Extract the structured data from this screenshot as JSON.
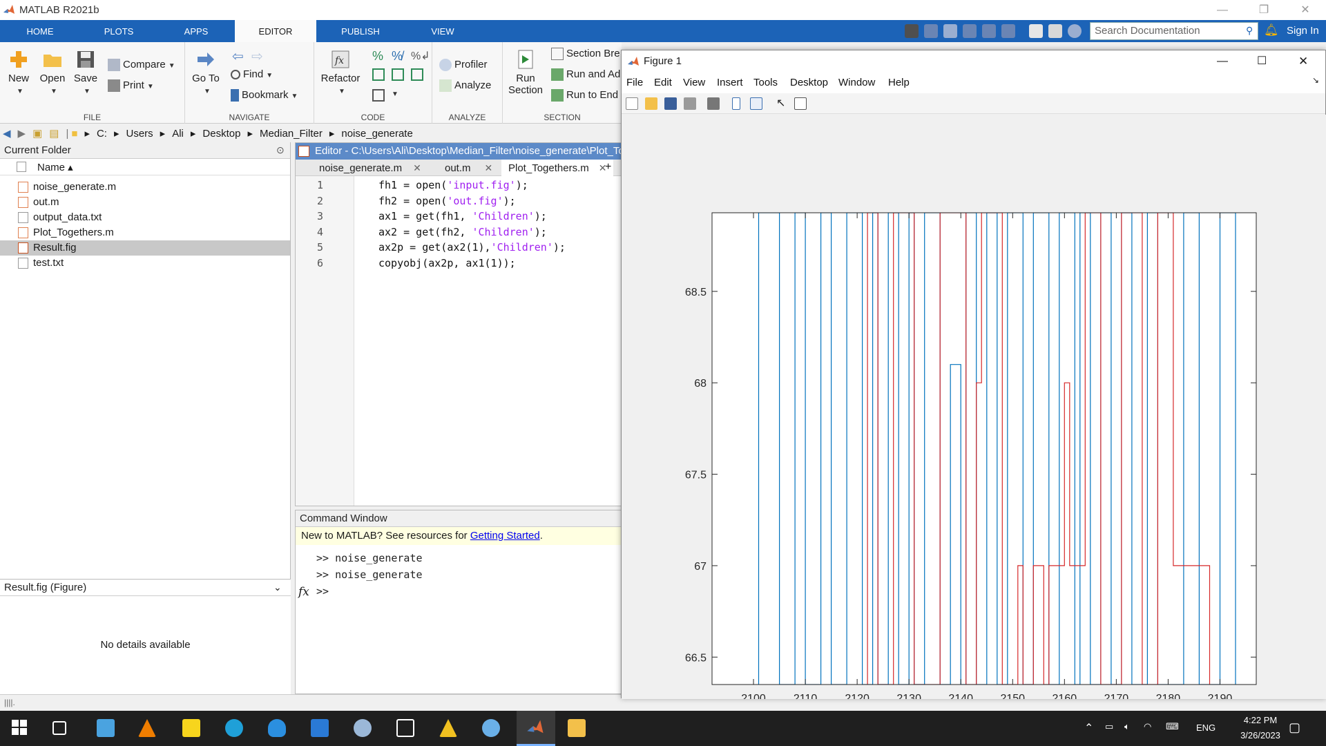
{
  "window": {
    "title": "MATLAB R2021b"
  },
  "ribbon": {
    "tabs": [
      "HOME",
      "PLOTS",
      "APPS",
      "EDITOR",
      "PUBLISH",
      "VIEW"
    ],
    "active_tab": "EDITOR",
    "search_placeholder": "Search Documentation",
    "sign_in": "Sign In"
  },
  "toolstrip": {
    "file": {
      "label": "FILE",
      "new": "New",
      "open": "Open",
      "save": "Save",
      "compare": "Compare",
      "print": "Print"
    },
    "navigate": {
      "label": "NAVIGATE",
      "goto": "Go To",
      "find": "Find",
      "bookmark": "Bookmark"
    },
    "code": {
      "label": "CODE",
      "refactor": "Refactor"
    },
    "analyze": {
      "label": "ANALYZE",
      "profiler": "Profiler",
      "analyze": "Analyze"
    },
    "section": {
      "label": "SECTION",
      "run_section": "Run",
      "run_section2": "Section",
      "section_break": "Section Bre",
      "run_advance": "Run and Ad",
      "run_to_end": "Run to End"
    }
  },
  "address": {
    "path": [
      "C:",
      "Users",
      "Ali",
      "Desktop",
      "Median_Filter",
      "noise_generate"
    ]
  },
  "current_folder": {
    "title": "Current Folder",
    "column": "Name ▴",
    "files": [
      "noise_generate.m",
      "out.m",
      "output_data.txt",
      "Plot_Togethers.m",
      "Result.fig",
      "test.txt"
    ],
    "selected": "Result.fig",
    "details_title": "Result.fig  (Figure)",
    "details_text": "No details available"
  },
  "editor": {
    "title": "Editor - C:\\Users\\Ali\\Desktop\\Median_Filter\\noise_generate\\Plot_To",
    "tabs": [
      "noise_generate.m",
      "out.m",
      "Plot_Togethers.m"
    ],
    "active_tab": "Plot_Togethers.m",
    "lines": [
      {
        "n": "1",
        "pre": "fh1 = open(",
        "str": "'input.fig'",
        "post": ");"
      },
      {
        "n": "2",
        "pre": "fh2 = open(",
        "str": "'out.fig'",
        "post": ");"
      },
      {
        "n": "3",
        "pre": "ax1 = get(fh1, ",
        "str": "'Children'",
        "post": ");"
      },
      {
        "n": "4",
        "pre": "ax2 = get(fh2, ",
        "str": "'Children'",
        "post": ");"
      },
      {
        "n": "5",
        "pre": "ax2p = get(ax2(1),",
        "str": "'Children'",
        "post": ");"
      },
      {
        "n": "6",
        "pre": "copyobj(ax2p, ax1(1));",
        "str": "",
        "post": ""
      }
    ]
  },
  "command_window": {
    "title": "Command Window",
    "banner_text": "New to MATLAB? See resources for ",
    "banner_link": "Getting Started",
    "banner_end": ".",
    "history": [
      ">> noise_generate",
      ">> noise_generate"
    ],
    "prompt": ">>"
  },
  "figure": {
    "title": "Figure 1",
    "menu": [
      "File",
      "Edit",
      "View",
      "Insert",
      "Tools",
      "Desktop",
      "Window",
      "Help"
    ]
  },
  "chart_data": {
    "type": "line",
    "xlim": [
      2092,
      2197
    ],
    "ylim": [
      66.35,
      68.93
    ],
    "xticks": [
      2100,
      2110,
      2120,
      2130,
      2140,
      2150,
      2160,
      2170,
      2180,
      2190
    ],
    "yticks": [
      66.5,
      67,
      67.5,
      68,
      68.5
    ],
    "xlabel": "",
    "ylabel": "",
    "title": "",
    "colors": {
      "series1": "#0072bd",
      "series2": "#d62728"
    },
    "series": [
      {
        "x": [
          2101,
          2101,
          2105,
          2105,
          2108,
          2108,
          2110,
          2110,
          2113,
          2113,
          2115,
          2115,
          2118,
          2118,
          2121,
          2121,
          2123,
          2123,
          2124,
          2124,
          2126,
          2126,
          2128,
          2128,
          2130,
          2130,
          2131,
          2131,
          2133,
          2133,
          2136,
          2136,
          2138,
          2138,
          2140,
          2140,
          2141,
          2141,
          2143,
          2143,
          2145,
          2145,
          2147,
          2147,
          2149,
          2149,
          2152,
          2152,
          2154,
          2154,
          2157,
          2157,
          2159,
          2159,
          2162,
          2162,
          2163,
          2163,
          2165,
          2165,
          2167,
          2167,
          2169,
          2169,
          2171,
          2171,
          2173,
          2173,
          2176,
          2176,
          2178,
          2178,
          2183,
          2183,
          2186,
          2186,
          2190,
          2190,
          2193,
          2193
        ],
        "y": [
          66.35,
          68.93,
          68.93,
          66.35,
          66.35,
          68.93,
          68.93,
          66.35,
          66.35,
          68.93,
          68.93,
          66.35,
          66.35,
          68.93,
          68.93,
          66.35,
          66.35,
          68.93,
          68.93,
          66.35,
          66.35,
          68.93,
          68.93,
          66.35,
          66.35,
          68.93,
          68.93,
          66.35,
          66.35,
          68.93,
          68.93,
          66.35,
          66.35,
          68.1,
          68.1,
          66.35,
          66.35,
          68.93,
          68.93,
          66.35,
          66.35,
          68.93,
          68.93,
          66.35,
          66.35,
          68.93,
          68.93,
          66.35,
          66.35,
          68.93,
          68.93,
          66.35,
          66.35,
          68.93,
          68.93,
          66.35,
          66.35,
          68.93,
          68.93,
          66.35,
          66.35,
          68.93,
          68.93,
          66.35,
          66.35,
          68.93,
          68.93,
          66.35,
          66.35,
          68.93,
          68.93,
          66.35,
          66.35,
          68.93,
          68.93,
          66.35,
          66.35,
          68.93,
          68.93,
          66.35
        ]
      },
      {
        "x": [
          2122,
          2122,
          2124,
          2124,
          2127,
          2127,
          2131,
          2131,
          2136,
          2136,
          2141,
          2141,
          2143,
          2143,
          2144,
          2144,
          2148,
          2148,
          2151,
          2151,
          2152,
          2152,
          2154,
          2154,
          2156,
          2156,
          2157,
          2157,
          2158,
          2158,
          2160,
          2160,
          2161,
          2161,
          2164,
          2164,
          2167,
          2167,
          2171,
          2171,
          2175,
          2175,
          2178,
          2178,
          2181,
          2181,
          2185,
          2185,
          2188,
          2188
        ],
        "y": [
          66.35,
          68.93,
          68.93,
          66.35,
          66.35,
          68.93,
          68.93,
          66.35,
          66.35,
          68.93,
          68.93,
          66.35,
          66.35,
          68.0,
          68.0,
          68.93,
          68.93,
          66.35,
          66.35,
          67.0,
          67.0,
          66.35,
          66.35,
          67.0,
          67.0,
          66.35,
          66.35,
          67.0,
          67.0,
          67.0,
          67.0,
          68.0,
          68.0,
          67.0,
          67.0,
          68.93,
          68.93,
          66.35,
          66.35,
          68.93,
          68.93,
          66.35,
          66.35,
          68.93,
          68.93,
          67.0,
          67.0,
          67.0,
          67.0,
          66.35
        ]
      }
    ]
  },
  "taskbar": {
    "lang": "ENG",
    "time": "4:22 PM",
    "date": "3/26/2023"
  }
}
